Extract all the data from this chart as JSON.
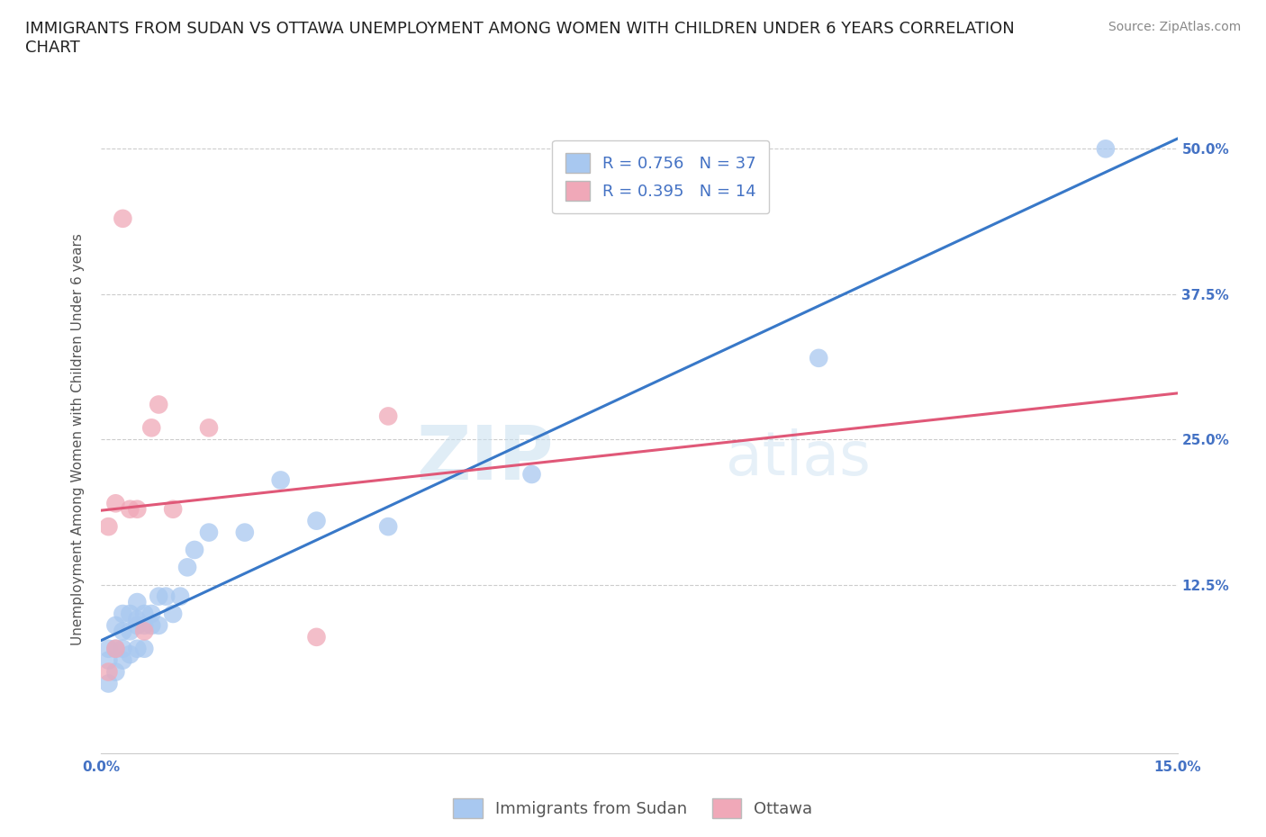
{
  "title": "IMMIGRANTS FROM SUDAN VS OTTAWA UNEMPLOYMENT AMONG WOMEN WITH CHILDREN UNDER 6 YEARS CORRELATION\nCHART",
  "source": "Source: ZipAtlas.com",
  "ylabel": "Unemployment Among Women with Children Under 6 years",
  "xlim": [
    0.0,
    0.15
  ],
  "ylim": [
    -0.02,
    0.52
  ],
  "xticks": [
    0.0,
    0.025,
    0.05,
    0.075,
    0.1,
    0.125,
    0.15
  ],
  "xticklabels": [
    "0.0%",
    "",
    "",
    "",
    "",
    "",
    "15.0%"
  ],
  "yticks": [
    0.0,
    0.125,
    0.25,
    0.375,
    0.5
  ],
  "yticklabels": [
    "",
    "12.5%",
    "25.0%",
    "37.5%",
    "50.0%"
  ],
  "blue_R": 0.756,
  "blue_N": 37,
  "pink_R": 0.395,
  "pink_N": 14,
  "blue_color": "#a8c8f0",
  "blue_line_color": "#3878c8",
  "pink_color": "#f0a8b8",
  "pink_line_color": "#e05878",
  "watermark_zip": "ZIP",
  "watermark_atlas": "atlas",
  "legend_label_blue": "Immigrants from Sudan",
  "legend_label_pink": "Ottawa",
  "blue_scatter_x": [
    0.001,
    0.001,
    0.001,
    0.002,
    0.002,
    0.002,
    0.003,
    0.003,
    0.003,
    0.003,
    0.004,
    0.004,
    0.004,
    0.005,
    0.005,
    0.005,
    0.005,
    0.006,
    0.006,
    0.006,
    0.007,
    0.007,
    0.008,
    0.008,
    0.009,
    0.01,
    0.011,
    0.012,
    0.013,
    0.015,
    0.02,
    0.025,
    0.03,
    0.04,
    0.06,
    0.1,
    0.14
  ],
  "blue_scatter_y": [
    0.04,
    0.06,
    0.07,
    0.05,
    0.07,
    0.09,
    0.06,
    0.07,
    0.085,
    0.1,
    0.065,
    0.085,
    0.1,
    0.07,
    0.09,
    0.095,
    0.11,
    0.07,
    0.09,
    0.1,
    0.09,
    0.1,
    0.09,
    0.115,
    0.115,
    0.1,
    0.115,
    0.14,
    0.155,
    0.17,
    0.17,
    0.215,
    0.18,
    0.175,
    0.22,
    0.32,
    0.5
  ],
  "pink_scatter_x": [
    0.001,
    0.001,
    0.002,
    0.002,
    0.003,
    0.004,
    0.005,
    0.006,
    0.007,
    0.008,
    0.01,
    0.015,
    0.03,
    0.04
  ],
  "pink_scatter_y": [
    0.05,
    0.175,
    0.07,
    0.195,
    0.44,
    0.19,
    0.19,
    0.085,
    0.26,
    0.28,
    0.19,
    0.26,
    0.08,
    0.27
  ],
  "background_color": "#ffffff",
  "grid_color": "#cccccc",
  "title_fontsize": 13,
  "axis_label_fontsize": 11,
  "tick_fontsize": 11,
  "legend_fontsize": 13,
  "source_fontsize": 10,
  "tick_color": "#4472c4"
}
